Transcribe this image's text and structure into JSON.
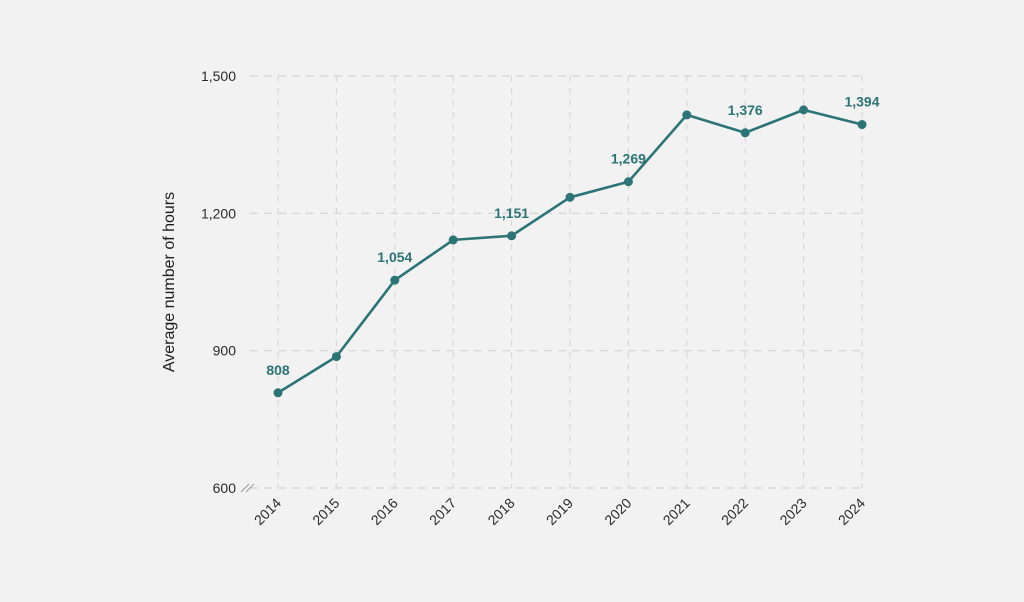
{
  "chart_data": {
    "type": "line",
    "title": "",
    "xlabel": "",
    "ylabel": "Average number of hours",
    "x": [
      "2014",
      "2015",
      "2016",
      "2017",
      "2018",
      "2019",
      "2020",
      "2021",
      "2022",
      "2023",
      "2024"
    ],
    "series": [
      {
        "name": "Average number of hours",
        "values": [
          808,
          887,
          1054,
          1142,
          1151,
          1235,
          1269,
          1415,
          1376,
          1426,
          1394
        ]
      }
    ],
    "ylim": [
      600,
      1500
    ],
    "yticks": [
      600,
      900,
      1200,
      1500
    ],
    "ytick_labels": [
      "600",
      "900",
      "1,200",
      "1,500"
    ],
    "y_axis_break": true,
    "grid": true,
    "data_labels": [
      {
        "index": 0,
        "text": "808"
      },
      {
        "index": 2,
        "text": "1,054"
      },
      {
        "index": 4,
        "text": "1,151"
      },
      {
        "index": 6,
        "text": "1,269"
      },
      {
        "index": 8,
        "text": "1,376"
      },
      {
        "index": 10,
        "text": "1,394"
      }
    ],
    "colors": {
      "line": "#2d7476",
      "label": "#2d7476",
      "grid": "#d4d4d4",
      "text": "#2b2b2b"
    }
  }
}
